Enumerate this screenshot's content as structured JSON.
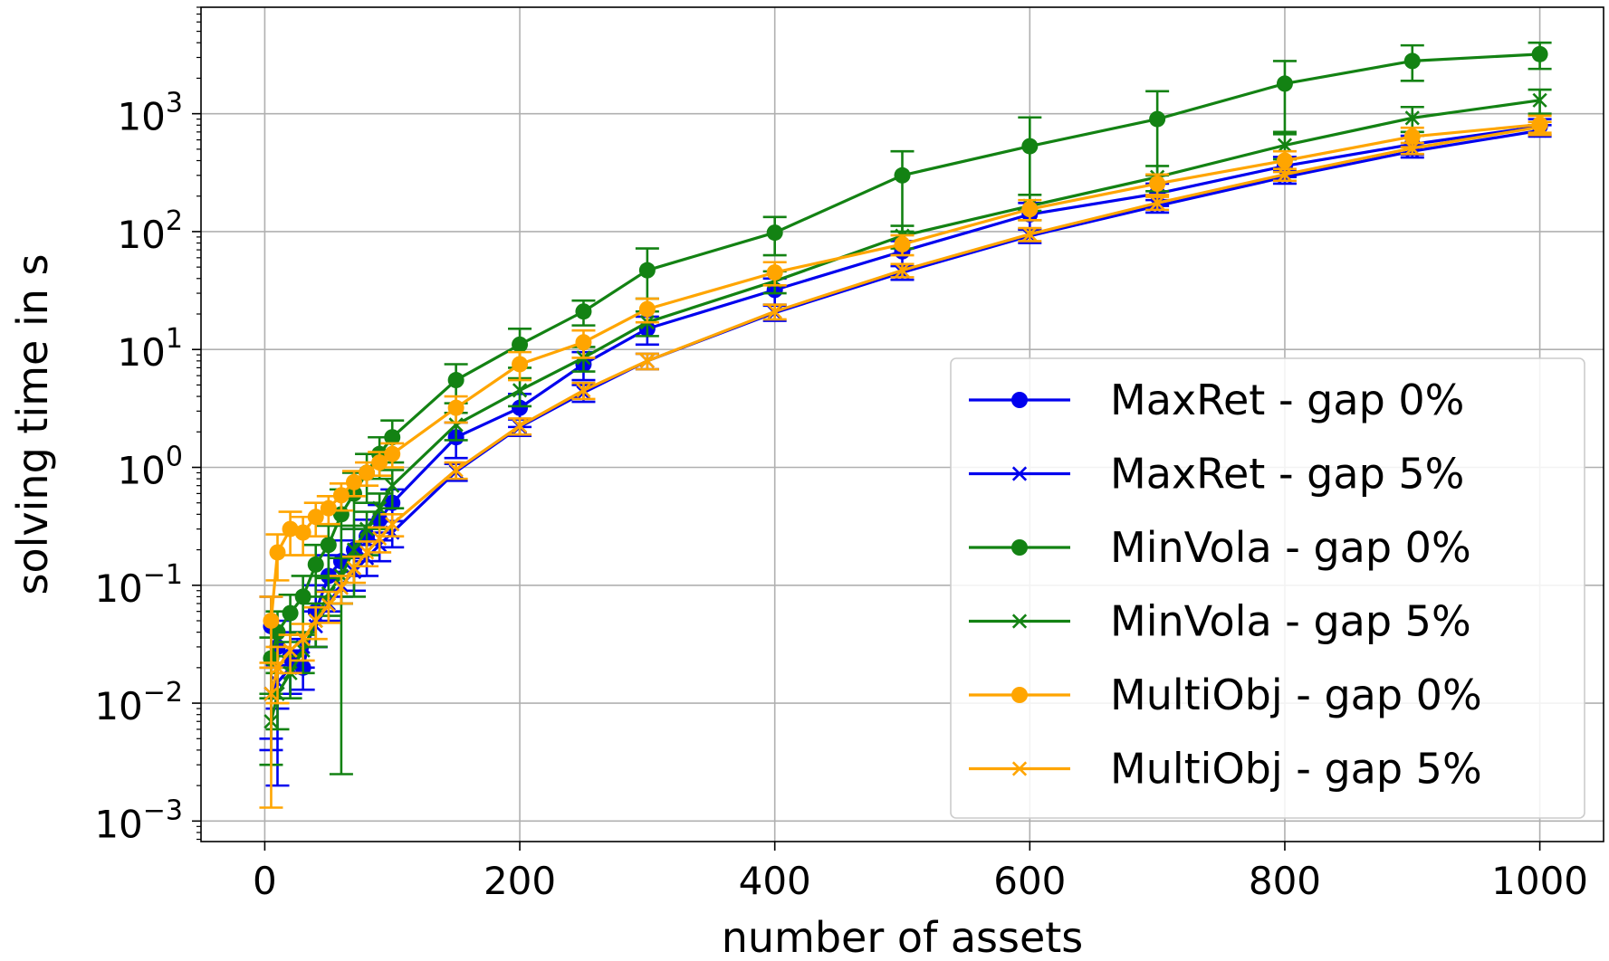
{
  "chart_data": {
    "type": "line",
    "title": "",
    "xlabel": "number of assets",
    "ylabel": "solving time in s",
    "xlim": [
      -50,
      1050
    ],
    "ylim": [
      0.00067,
      8000
    ],
    "yscale": "log",
    "grid": true,
    "legend_position": "lower-right",
    "x_ticks": [
      {
        "value": 0,
        "label": "0"
      },
      {
        "value": 200,
        "label": "200"
      },
      {
        "value": 400,
        "label": "400"
      },
      {
        "value": 600,
        "label": "600"
      },
      {
        "value": 800,
        "label": "800"
      },
      {
        "value": 1000,
        "label": "1000"
      }
    ],
    "y_ticks": [
      {
        "value": 0.001,
        "base": "10",
        "exp": "−3"
      },
      {
        "value": 0.01,
        "base": "10",
        "exp": "−2"
      },
      {
        "value": 0.1,
        "base": "10",
        "exp": "−1"
      },
      {
        "value": 1,
        "base": "10",
        "exp": "0"
      },
      {
        "value": 10,
        "base": "10",
        "exp": "1"
      },
      {
        "value": 100,
        "base": "10",
        "exp": "2"
      },
      {
        "value": 1000,
        "base": "10",
        "exp": "3"
      }
    ],
    "series": [
      {
        "name": "MaxRet - gap 0%",
        "color": "#0000ee",
        "marker": "circle",
        "x": [
          5,
          10,
          20,
          30,
          40,
          50,
          60,
          70,
          80,
          90,
          100,
          150,
          200,
          250,
          300,
          400,
          500,
          600,
          700,
          800,
          900,
          1000
        ],
        "y": [
          0.045,
          0.03,
          0.025,
          0.02,
          0.06,
          0.12,
          0.16,
          0.2,
          0.26,
          0.36,
          0.5,
          1.8,
          3.2,
          7.5,
          15,
          32,
          68,
          140,
          210,
          360,
          550,
          780
        ],
        "err_low": [
          0.04,
          0.028,
          0.013,
          0.007,
          0.03,
          0.06,
          0.08,
          0.08,
          0.1,
          0.12,
          0.15,
          0.6,
          1.0,
          2.0,
          4,
          8,
          15,
          35,
          45,
          70,
          100,
          120
        ],
        "err_high": [
          0.035,
          0.02,
          0.015,
          0.015,
          0.04,
          0.06,
          0.08,
          0.1,
          0.1,
          0.12,
          0.15,
          0.6,
          1.0,
          2.0,
          4,
          8,
          15,
          35,
          45,
          70,
          100,
          120
        ]
      },
      {
        "name": "MaxRet - gap 5%",
        "color": "#0000ee",
        "marker": "x",
        "x": [
          5,
          10,
          20,
          30,
          40,
          50,
          60,
          70,
          80,
          90,
          100,
          150,
          200,
          250,
          300,
          400,
          500,
          600,
          700,
          800,
          900,
          1000
        ],
        "y": [
          0.012,
          0.015,
          0.02,
          0.03,
          0.045,
          0.07,
          0.1,
          0.13,
          0.17,
          0.22,
          0.28,
          0.92,
          2.2,
          4.3,
          8,
          20.5,
          45,
          92,
          165,
          290,
          480,
          720
        ],
        "err_low": [
          0.008,
          0.006,
          0.008,
          0.01,
          0.015,
          0.02,
          0.03,
          0.04,
          0.05,
          0.06,
          0.07,
          0.15,
          0.35,
          0.7,
          1.2,
          3,
          6,
          12,
          20,
          35,
          55,
          80
        ],
        "err_high": [
          0.008,
          0.006,
          0.008,
          0.01,
          0.015,
          0.02,
          0.03,
          0.04,
          0.05,
          0.06,
          0.07,
          0.15,
          0.35,
          0.7,
          1.2,
          3,
          6,
          12,
          20,
          35,
          55,
          80
        ]
      },
      {
        "name": "MinVola - gap 0%",
        "color": "#138213",
        "marker": "circle",
        "x": [
          5,
          10,
          20,
          30,
          40,
          50,
          60,
          70,
          80,
          90,
          100,
          150,
          200,
          250,
          300,
          400,
          500,
          600,
          700,
          800,
          900,
          1000
        ],
        "y": [
          0.024,
          0.04,
          0.058,
          0.08,
          0.15,
          0.22,
          0.4,
          0.6,
          0.9,
          1.3,
          1.8,
          5.5,
          11,
          21,
          47,
          98,
          300,
          530,
          900,
          1800,
          2800,
          3200
        ],
        "err_low": [
          0.012,
          0.02,
          0.025,
          0.04,
          0.07,
          0.1,
          0.3975,
          0.3,
          0.4,
          0.5,
          0.7,
          2.0,
          4,
          5,
          20,
          35,
          200,
          380,
          600,
          1100,
          900,
          800
        ],
        "err_high": [
          0.012,
          0.02,
          0.025,
          0.04,
          0.07,
          0.1,
          0.25,
          0.3,
          0.4,
          0.5,
          0.7,
          2.0,
          4,
          5,
          25,
          35,
          180,
          400,
          650,
          1000,
          1000,
          800
        ]
      },
      {
        "name": "MinVola - gap 5%",
        "color": "#138213",
        "marker": "x",
        "x": [
          5,
          10,
          20,
          30,
          40,
          50,
          60,
          70,
          80,
          90,
          100,
          150,
          200,
          250,
          300,
          400,
          500,
          600,
          700,
          800,
          900,
          1000
        ],
        "y": [
          0.007,
          0.012,
          0.018,
          0.028,
          0.05,
          0.085,
          0.12,
          0.2,
          0.3,
          0.45,
          0.7,
          2.3,
          4.5,
          8.5,
          17,
          38,
          92,
          165,
          290,
          540,
          920,
          1300
        ],
        "err_low": [
          0.004,
          0.006,
          0.007,
          0.01,
          0.02,
          0.03,
          0.05,
          0.12,
          0.12,
          0.15,
          0.25,
          0.6,
          1.2,
          2,
          4,
          8,
          20,
          40,
          70,
          130,
          220,
          300
        ],
        "err_high": [
          0.004,
          0.006,
          0.007,
          0.01,
          0.02,
          0.03,
          0.05,
          0.12,
          0.12,
          0.15,
          0.25,
          0.6,
          1.2,
          2,
          4,
          8,
          20,
          40,
          70,
          130,
          220,
          300
        ]
      },
      {
        "name": "MultiObj - gap 0%",
        "color": "#ffa500",
        "marker": "circle",
        "x": [
          5,
          10,
          20,
          30,
          40,
          50,
          60,
          70,
          80,
          90,
          100,
          150,
          200,
          250,
          300,
          400,
          500,
          600,
          700,
          800,
          900,
          1000
        ],
        "y": [
          0.05,
          0.19,
          0.3,
          0.28,
          0.38,
          0.45,
          0.58,
          0.75,
          0.9,
          1.1,
          1.3,
          3.2,
          7.5,
          11.5,
          22,
          45,
          78,
          155,
          255,
          400,
          640,
          810
        ],
        "err_low": [
          0.03,
          0.08,
          0.12,
          0.1,
          0.12,
          0.12,
          0.15,
          0.18,
          0.2,
          0.25,
          0.3,
          0.8,
          2,
          3,
          5,
          10,
          15,
          30,
          50,
          80,
          120,
          150
        ],
        "err_high": [
          0.03,
          0.08,
          0.12,
          0.1,
          0.12,
          0.12,
          0.15,
          0.18,
          0.2,
          0.25,
          0.3,
          0.8,
          2,
          3,
          5,
          10,
          15,
          30,
          50,
          80,
          120,
          150
        ]
      },
      {
        "name": "MultiObj - gap 5%",
        "color": "#ffa500",
        "marker": "x",
        "x": [
          5,
          10,
          20,
          30,
          40,
          50,
          60,
          70,
          80,
          90,
          100,
          150,
          200,
          250,
          300,
          400,
          500,
          600,
          700,
          800,
          900,
          1000
        ],
        "y": [
          0.012,
          0.02,
          0.028,
          0.035,
          0.05,
          0.068,
          0.095,
          0.14,
          0.19,
          0.25,
          0.33,
          0.95,
          2.25,
          4.5,
          8,
          21,
          47,
          95,
          175,
          305,
          510,
          770
        ],
        "err_low": [
          0.0107,
          0.01,
          0.01,
          0.012,
          0.015,
          0.02,
          0.025,
          0.035,
          0.045,
          0.06,
          0.07,
          0.15,
          0.35,
          0.7,
          1.2,
          3,
          6,
          12,
          22,
          35,
          55,
          80
        ],
        "err_high": [
          0.01,
          0.01,
          0.01,
          0.012,
          0.015,
          0.02,
          0.025,
          0.035,
          0.045,
          0.06,
          0.07,
          0.15,
          0.35,
          0.7,
          1.2,
          3,
          6,
          12,
          22,
          35,
          55,
          80
        ]
      }
    ]
  }
}
